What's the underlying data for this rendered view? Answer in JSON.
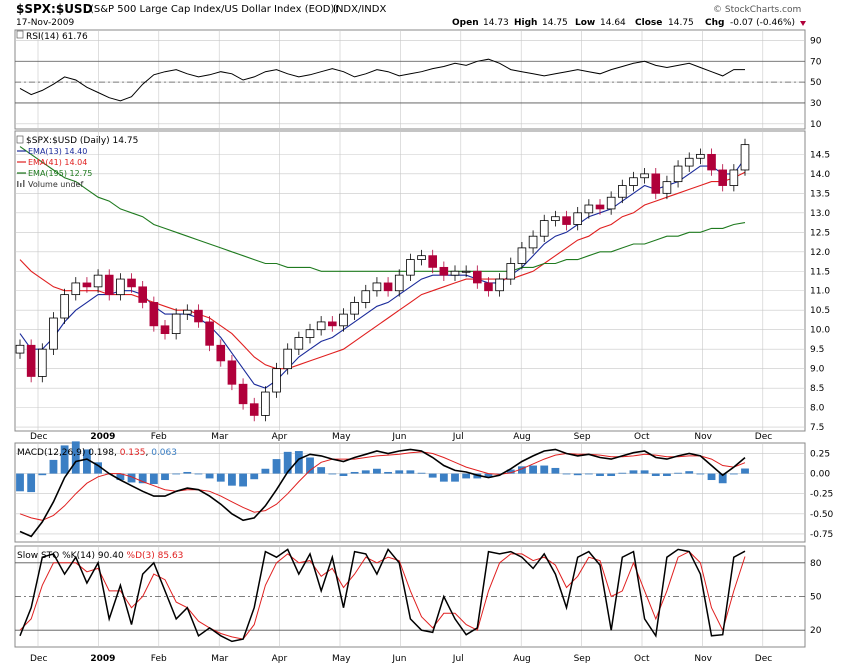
{
  "header": {
    "symbol": "$SPX:$USD",
    "description": "(S&P 500 Large Cap Index/US Dollar Index (EOD))",
    "exchange": "INDX/INDX",
    "date": "17-Nov-2009",
    "watermark": "© StockCharts.com",
    "quote": {
      "open_label": "Open",
      "open": "14.73",
      "high_label": "High",
      "high": "14.75",
      "low_label": "Low",
      "low": "14.64",
      "close_label": "Close",
      "close": "14.75",
      "chg_label": "Chg",
      "chg": "-0.07 (-0.46%)"
    }
  },
  "colors": {
    "up": "#000000",
    "down": "#b0003a",
    "ema13": "#1a2a9a",
    "ema41": "#e02020",
    "ema195": "#1f7a1f",
    "histogram": "#3b7fc4",
    "grid": "#c8c8c8",
    "sto_d": "#e02020",
    "sto_k": "#000000"
  },
  "chart_data": [
    {
      "type": "line",
      "panel": "rsi",
      "title": "RSI(14) 61.76",
      "ylim": [
        5,
        100
      ],
      "y_ticks": [
        "90",
        "70",
        "50",
        "30",
        "10"
      ],
      "reference_levels": [
        70,
        50,
        30
      ],
      "series": [
        {
          "name": "RSI(14) 61.76",
          "values": [
            44,
            38,
            42,
            48,
            55,
            52,
            45,
            40,
            35,
            32,
            36,
            48,
            57,
            60,
            62,
            58,
            55,
            57,
            60,
            58,
            52,
            55,
            60,
            62,
            58,
            55,
            57,
            60,
            63,
            60,
            55,
            58,
            62,
            60,
            56,
            58,
            60,
            63,
            65,
            68,
            66,
            70,
            72,
            68,
            62,
            60,
            58,
            56,
            58,
            60,
            62,
            60,
            58,
            62,
            65,
            68,
            70,
            66,
            64,
            66,
            68,
            64,
            60,
            56,
            62,
            62
          ]
        }
      ]
    },
    {
      "type": "candlestick",
      "panel": "price",
      "title": "$SPX:$USD (Daily) 14.75",
      "ylim": [
        7.4,
        15.1
      ],
      "y_ticks": [
        "14.5",
        "14.0",
        "13.5",
        "13.0",
        "12.5",
        "12.0",
        "11.5",
        "11.0",
        "10.5",
        "10.0",
        "9.5",
        "9.0",
        "8.5",
        "8.0",
        "7.5"
      ],
      "x_ticks": [
        "Dec",
        "2009",
        "Feb",
        "Mar",
        "Apr",
        "May",
        "Jun",
        "Jul",
        "Aug",
        "Sep",
        "Oct",
        "Nov",
        "Dec"
      ],
      "legend": [
        "EMA(13) 14.40",
        "EMA(41) 14.04",
        "EMA(195) 12.75",
        "Volume undef"
      ],
      "close": [
        9.6,
        8.8,
        9.5,
        10.3,
        10.9,
        11.2,
        11.1,
        11.4,
        10.9,
        11.3,
        11.1,
        10.7,
        10.1,
        9.9,
        10.4,
        10.5,
        10.2,
        9.6,
        9.2,
        8.6,
        8.1,
        7.8,
        8.4,
        9.0,
        9.5,
        9.8,
        10.0,
        10.2,
        10.1,
        10.4,
        10.7,
        11.0,
        11.2,
        11.0,
        11.4,
        11.8,
        11.9,
        11.6,
        11.4,
        11.5,
        11.5,
        11.2,
        11.0,
        11.3,
        11.7,
        12.1,
        12.4,
        12.8,
        12.9,
        12.7,
        13.0,
        13.2,
        13.1,
        13.4,
        13.7,
        13.9,
        14.0,
        13.5,
        13.8,
        14.2,
        14.4,
        14.5,
        14.1,
        13.7,
        14.1,
        14.75
      ],
      "series": [
        {
          "name": "EMA(13) 14.40",
          "values": [
            9.9,
            9.5,
            9.5,
            9.8,
            10.2,
            10.5,
            10.7,
            10.9,
            10.9,
            11.0,
            11.0,
            10.9,
            10.6,
            10.4,
            10.4,
            10.4,
            10.3,
            10.1,
            9.8,
            9.4,
            9.0,
            8.6,
            8.5,
            8.7,
            9.0,
            9.3,
            9.5,
            9.7,
            9.8,
            10.0,
            10.2,
            10.4,
            10.6,
            10.7,
            10.9,
            11.1,
            11.3,
            11.4,
            11.4,
            11.4,
            11.4,
            11.3,
            11.2,
            11.2,
            11.4,
            11.6,
            11.9,
            12.2,
            12.4,
            12.5,
            12.7,
            12.9,
            13.0,
            13.1,
            13.3,
            13.5,
            13.7,
            13.6,
            13.7,
            13.8,
            14.0,
            14.2,
            14.2,
            14.0,
            14.0,
            14.4
          ]
        },
        {
          "name": "EMA(41) 14.04",
          "values": [
            11.8,
            11.5,
            11.3,
            11.1,
            11.0,
            11.0,
            11.0,
            11.0,
            10.9,
            10.9,
            10.9,
            10.8,
            10.7,
            10.6,
            10.5,
            10.5,
            10.4,
            10.3,
            10.1,
            9.9,
            9.6,
            9.3,
            9.1,
            9.0,
            9.0,
            9.1,
            9.2,
            9.3,
            9.4,
            9.5,
            9.7,
            9.9,
            10.1,
            10.3,
            10.5,
            10.7,
            10.9,
            11.0,
            11.1,
            11.2,
            11.3,
            11.3,
            11.3,
            11.3,
            11.3,
            11.4,
            11.5,
            11.7,
            11.9,
            12.1,
            12.3,
            12.4,
            12.6,
            12.7,
            12.9,
            13.0,
            13.2,
            13.3,
            13.4,
            13.5,
            13.6,
            13.7,
            13.8,
            13.8,
            13.9,
            14.04
          ]
        },
        {
          "name": "EMA(195) 12.75",
          "values": [
            14.7,
            14.5,
            14.3,
            14.1,
            13.9,
            13.8,
            13.6,
            13.4,
            13.3,
            13.1,
            13.0,
            12.9,
            12.7,
            12.6,
            12.5,
            12.4,
            12.3,
            12.2,
            12.1,
            12.0,
            11.9,
            11.8,
            11.7,
            11.7,
            11.6,
            11.6,
            11.6,
            11.5,
            11.5,
            11.5,
            11.5,
            11.5,
            11.5,
            11.5,
            11.5,
            11.5,
            11.5,
            11.5,
            11.5,
            11.5,
            11.5,
            11.5,
            11.5,
            11.5,
            11.5,
            11.6,
            11.6,
            11.7,
            11.7,
            11.8,
            11.8,
            11.9,
            12.0,
            12.0,
            12.1,
            12.2,
            12.2,
            12.3,
            12.4,
            12.4,
            12.5,
            12.5,
            12.6,
            12.6,
            12.7,
            12.75
          ]
        }
      ]
    },
    {
      "type": "line",
      "panel": "macd",
      "title": "MACD(12,26,9) 0.198, 0.135, 0.063",
      "ylim": [
        -0.85,
        0.38
      ],
      "y_ticks": [
        "0.25",
        "0.00",
        "-0.25",
        "-0.50",
        "-0.75"
      ],
      "series": [
        {
          "name": "MACD(12,26,9) 0.198",
          "values": [
            -0.72,
            -0.78,
            -0.6,
            -0.35,
            -0.05,
            0.15,
            0.18,
            0.1,
            0.0,
            -0.08,
            -0.15,
            -0.22,
            -0.28,
            -0.28,
            -0.22,
            -0.18,
            -0.2,
            -0.28,
            -0.38,
            -0.5,
            -0.58,
            -0.55,
            -0.4,
            -0.2,
            0.02,
            0.18,
            0.24,
            0.22,
            0.18,
            0.15,
            0.2,
            0.24,
            0.28,
            0.25,
            0.28,
            0.3,
            0.28,
            0.2,
            0.1,
            0.04,
            0.02,
            -0.02,
            -0.05,
            -0.02,
            0.06,
            0.15,
            0.22,
            0.28,
            0.3,
            0.25,
            0.22,
            0.24,
            0.2,
            0.18,
            0.22,
            0.26,
            0.28,
            0.2,
            0.18,
            0.22,
            0.25,
            0.22,
            0.1,
            -0.02,
            0.08,
            0.198
          ]
        },
        {
          "name": "0.135",
          "values": [
            -0.5,
            -0.55,
            -0.58,
            -0.52,
            -0.4,
            -0.25,
            -0.12,
            -0.04,
            0.0,
            0.0,
            -0.04,
            -0.1,
            -0.15,
            -0.2,
            -0.22,
            -0.2,
            -0.2,
            -0.22,
            -0.28,
            -0.35,
            -0.42,
            -0.48,
            -0.46,
            -0.38,
            -0.25,
            -0.1,
            0.04,
            0.14,
            0.18,
            0.18,
            0.18,
            0.2,
            0.22,
            0.23,
            0.24,
            0.26,
            0.27,
            0.25,
            0.2,
            0.14,
            0.08,
            0.04,
            0.0,
            -0.01,
            0.01,
            0.06,
            0.12,
            0.18,
            0.23,
            0.25,
            0.24,
            0.24,
            0.23,
            0.21,
            0.21,
            0.22,
            0.24,
            0.23,
            0.21,
            0.21,
            0.22,
            0.22,
            0.18,
            0.1,
            0.08,
            0.135
          ]
        }
      ],
      "histogram": {
        "name": "0.063",
        "values": [
          -0.22,
          -0.23,
          -0.02,
          0.17,
          0.35,
          0.4,
          0.3,
          0.14,
          0.0,
          -0.08,
          -0.11,
          -0.12,
          -0.13,
          -0.08,
          0.0,
          0.02,
          0.0,
          -0.06,
          -0.1,
          -0.15,
          -0.16,
          -0.07,
          0.06,
          0.18,
          0.27,
          0.28,
          0.2,
          0.08,
          0.0,
          -0.03,
          0.02,
          0.04,
          0.06,
          0.02,
          0.04,
          0.04,
          0.01,
          -0.05,
          -0.1,
          -0.1,
          -0.06,
          -0.06,
          -0.05,
          -0.01,
          0.05,
          0.09,
          0.1,
          0.1,
          0.07,
          0.0,
          -0.02,
          0.0,
          -0.03,
          -0.03,
          0.01,
          0.04,
          0.04,
          -0.03,
          -0.03,
          0.01,
          0.03,
          0.0,
          -0.08,
          -0.12,
          0.0,
          0.063
        ]
      }
    },
    {
      "type": "line",
      "panel": "sto",
      "title": "Slow STO %K(14) %D(3) 90.40, 85.63",
      "ylim": [
        5,
        95
      ],
      "y_ticks": [
        "80",
        "50",
        "20"
      ],
      "reference_levels": [
        80,
        50,
        20
      ],
      "x_ticks": [
        "Dec",
        "2009",
        "Feb",
        "Mar",
        "Apr",
        "May",
        "Jun",
        "Jul",
        "Aug",
        "Sep",
        "Oct",
        "Nov",
        "Dec"
      ],
      "series": [
        {
          "name": "%K(14) 90.40",
          "values": [
            15,
            40,
            85,
            88,
            70,
            85,
            62,
            80,
            30,
            60,
            25,
            70,
            80,
            55,
            30,
            40,
            15,
            22,
            15,
            10,
            12,
            40,
            90,
            85,
            92,
            70,
            88,
            55,
            85,
            40,
            90,
            88,
            70,
            92,
            80,
            30,
            20,
            18,
            50,
            30,
            16,
            22,
            90,
            88,
            90,
            85,
            75,
            88,
            70,
            40,
            85,
            90,
            78,
            20,
            85,
            90,
            30,
            15,
            85,
            92,
            90,
            70,
            15,
            16,
            85,
            90.4
          ]
        },
        {
          "name": "%D(3) 85.63",
          "values": [
            20,
            30,
            60,
            80,
            80,
            80,
            72,
            75,
            55,
            55,
            40,
            50,
            70,
            65,
            45,
            40,
            28,
            22,
            17,
            14,
            12,
            25,
            60,
            80,
            88,
            80,
            82,
            68,
            75,
            58,
            70,
            85,
            80,
            85,
            82,
            55,
            32,
            22,
            35,
            35,
            25,
            20,
            55,
            80,
            88,
            88,
            82,
            85,
            78,
            58,
            68,
            85,
            82,
            50,
            55,
            80,
            55,
            30,
            55,
            85,
            90,
            80,
            40,
            20,
            55,
            85.63
          ]
        }
      ]
    }
  ]
}
